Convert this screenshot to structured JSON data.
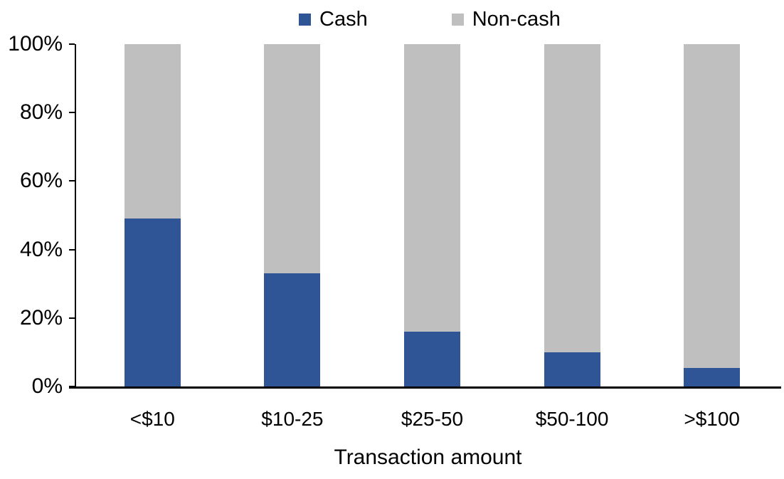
{
  "chart_data": {
    "type": "bar",
    "stacked": true,
    "normalized_to_100": true,
    "title": "",
    "xlabel": "Transaction amount",
    "ylabel": "",
    "categories": [
      "<$10",
      "$10-25",
      "$25-50",
      "$50-100",
      ">$100"
    ],
    "series": [
      {
        "name": "Cash",
        "color": "#2F5597",
        "values": [
          49,
          33,
          16,
          10,
          5.5
        ]
      },
      {
        "name": "Non-cash",
        "color": "#BFBFBF",
        "values": [
          51,
          67,
          84,
          90,
          94.5
        ]
      }
    ],
    "ylim": [
      0,
      100
    ],
    "ytick_values": [
      0,
      20,
      40,
      60,
      80,
      100
    ],
    "ytick_labels": [
      "0%",
      "20%",
      "40%",
      "60%",
      "80%",
      "100%"
    ],
    "legend_position": "top",
    "grid": false,
    "axis_color": "#000000",
    "background_color": "#FFFFFF"
  }
}
